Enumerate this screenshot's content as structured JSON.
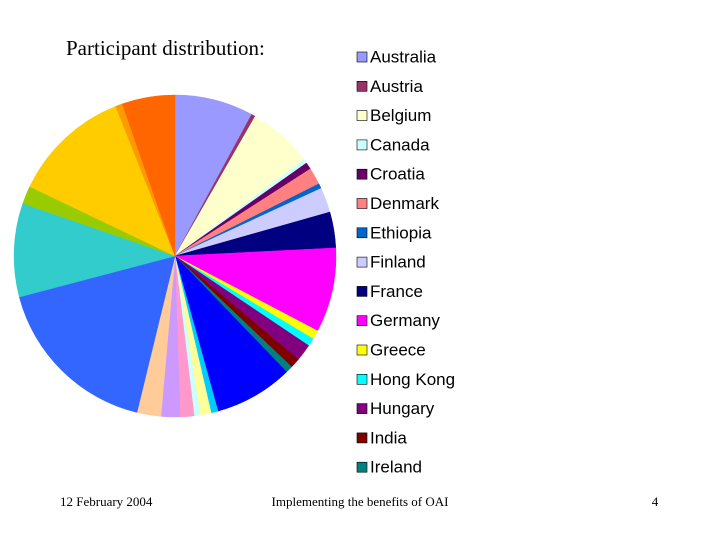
{
  "chart_data": {
    "type": "pie",
    "title": "Participant distribution:",
    "categories": [
      "Australia",
      "Austria",
      "Belgium",
      "Canada",
      "Croatia",
      "Denmark",
      "Ethiopia",
      "Finland",
      "France",
      "Germany",
      "Greece",
      "Hong Kong",
      "Hungary",
      "India",
      "Ireland",
      null,
      null,
      null,
      null,
      null,
      null,
      null,
      null,
      null,
      null,
      null,
      null,
      null
    ],
    "values": [
      7.9,
      0.4,
      6.5,
      0.4,
      0.7,
      1.7,
      0.5,
      2.5,
      3.6,
      8.5,
      0.9,
      0.8,
      1.7,
      1.0,
      0.7,
      7.9,
      0.7,
      1.1,
      0.6,
      1.4,
      1.9,
      2.4,
      17.1,
      9.4,
      1.8,
      11.9,
      0.7,
      5.3
    ],
    "colors": [
      "#9999ff",
      "#993366",
      "#ffffcc",
      "#ccffff",
      "#660066",
      "#ff8080",
      "#0066cc",
      "#ccccff",
      "#000080",
      "#ff00ff",
      "#ffff00",
      "#00ffff",
      "#800080",
      "#800000",
      "#008080",
      "#0000ff",
      "#00ccff",
      "#ffff99",
      "#ccffff",
      "#ff99cc",
      "#cc99ff",
      "#ffcc99",
      "#3366ff",
      "#33cccc",
      "#99cc00",
      "#ffcc00",
      "#ff9900",
      "#ff6600"
    ],
    "legend": "right"
  },
  "footer": {
    "date": "12 February 2004",
    "text": "Implementing the benefits of OAI",
    "page": "4"
  }
}
